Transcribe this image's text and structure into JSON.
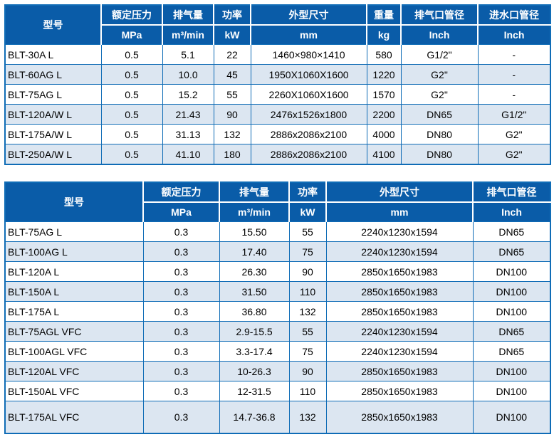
{
  "colors": {
    "header_bg": "#0a5ca8",
    "header_text": "#ffffff",
    "grid_line": "#0f6cb6",
    "row_alt_bg": "#dce6f1",
    "row_bg": "#ffffff",
    "cell_text": "#000000"
  },
  "tables": [
    {
      "model_header": "型号",
      "columns": [
        {
          "title": "额定压力",
          "unit": "MPa"
        },
        {
          "title": "排气量",
          "unit": "m³/min"
        },
        {
          "title": "功率",
          "unit": "kW"
        },
        {
          "title": "外型尺寸",
          "unit": "mm"
        },
        {
          "title": "重量",
          "unit": "kg"
        },
        {
          "title": "排气口管径",
          "unit": "Inch"
        },
        {
          "title": "进水口管径",
          "unit": "Inch"
        }
      ],
      "rows": [
        [
          "BLT-30A L",
          "0.5",
          "5.1",
          "22",
          "1460×980×1410",
          "580",
          "G1/2\"",
          "-"
        ],
        [
          "BLT-60AG L",
          "0.5",
          "10.0",
          "45",
          "1950X1060X1600",
          "1220",
          "G2\"",
          "-"
        ],
        [
          "BLT-75AG L",
          "0.5",
          "15.2",
          "55",
          "2260X1060X1600",
          "1570",
          "G2\"",
          "-"
        ],
        [
          "BLT-120A/W L",
          "0.5",
          "21.43",
          "90",
          "2476x1526x1800",
          "2200",
          "DN65",
          "G1/2\""
        ],
        [
          "BLT-175A/W L",
          "0.5",
          "31.13",
          "132",
          "2886x2086x2100",
          "4000",
          "DN80",
          "G2\""
        ],
        [
          "BLT-250A/W L",
          "0.5",
          "41.10",
          "180",
          "2886x2086x2100",
          "4100",
          "DN80",
          "G2\""
        ]
      ]
    },
    {
      "model_header": "型号",
      "columns": [
        {
          "title": "额定压力",
          "unit": "MPa"
        },
        {
          "title": "排气量",
          "unit": "m³/min"
        },
        {
          "title": "功率",
          "unit": "kW"
        },
        {
          "title": "外型尺寸",
          "unit": "mm"
        },
        {
          "title": "排气口管径",
          "unit": "Inch"
        }
      ],
      "rows": [
        [
          "BLT-75AG L",
          "0.3",
          "15.50",
          "55",
          "2240x1230x1594",
          "DN65"
        ],
        [
          "BLT-100AG L",
          "0.3",
          "17.40",
          "75",
          "2240x1230x1594",
          "DN65"
        ],
        [
          "BLT-120A L",
          "0.3",
          "26.30",
          "90",
          "2850x1650x1983",
          "DN100"
        ],
        [
          "BLT-150A L",
          "0.3",
          "31.50",
          "110",
          "2850x1650x1983",
          "DN100"
        ],
        [
          "BLT-175A L",
          "0.3",
          "36.80",
          "132",
          "2850x1650x1983",
          "DN100"
        ],
        [
          "BLT-75AGL VFC",
          "0.3",
          "2.9-15.5",
          "55",
          "2240x1230x1594",
          "DN65"
        ],
        [
          "BLT-100AGL VFC",
          "0.3",
          "3.3-17.4",
          "75",
          "2240x1230x1594",
          "DN65"
        ],
        [
          "BLT-120AL VFC",
          "0.3",
          "10-26.3",
          "90",
          "2850x1650x1983",
          "DN100"
        ],
        [
          "BLT-150AL VFC",
          "0.3",
          "12-31.5",
          "110",
          "2850x1650x1983",
          "DN100"
        ],
        [
          "BLT-175AL VFC",
          "0.3",
          "14.7-36.8",
          "132",
          "2850x1650x1983",
          "DN100"
        ]
      ]
    }
  ]
}
